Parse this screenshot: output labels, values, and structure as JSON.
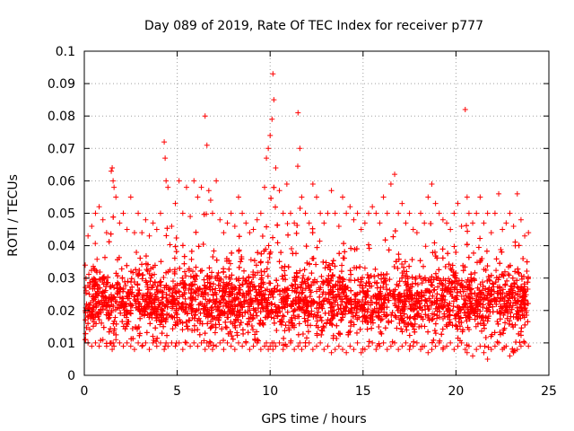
{
  "chart_data": {
    "type": "scatter",
    "title": "Day 089 of 2019, Rate Of TEC Index for receiver p777",
    "xlabel": "GPS time / hours",
    "ylabel": "ROTI / TECUs",
    "xlim": [
      0,
      25
    ],
    "ylim": [
      0,
      0.1
    ],
    "xticks": [
      0,
      5,
      10,
      15,
      20,
      25
    ],
    "xtick_labels": [
      "0",
      "5",
      "10",
      "15",
      "20",
      "25"
    ],
    "yticks": [
      0,
      0.01,
      0.02,
      0.03,
      0.04,
      0.05,
      0.06,
      0.07,
      0.08,
      0.09,
      0.1
    ],
    "ytick_labels": [
      "0",
      "0.01",
      "0.02",
      "0.03",
      "0.04",
      "0.05",
      "0.06",
      "0.07",
      "0.08",
      "0.09",
      "0.1"
    ],
    "grid": true,
    "marker": "+",
    "series": [
      {
        "name": "ROTI",
        "color": "#ff0000",
        "x": [
          0.05,
          0.2,
          0.4,
          0.6,
          0.8,
          1.0,
          1.2,
          1.45,
          1.5,
          1.55,
          1.6,
          1.7,
          1.9,
          2.1,
          2.3,
          2.5,
          2.7,
          2.9,
          3.1,
          3.3,
          3.5,
          3.7,
          3.9,
          4.1,
          4.3,
          4.35,
          4.4,
          4.5,
          4.7,
          4.9,
          5.1,
          5.3,
          5.5,
          5.7,
          5.9,
          6.1,
          6.3,
          6.5,
          6.6,
          6.7,
          6.8,
          6.9,
          7.1,
          7.3,
          7.5,
          7.7,
          7.9,
          8.1,
          8.3,
          8.5,
          8.7,
          8.9,
          9.1,
          9.3,
          9.5,
          9.7,
          9.8,
          9.9,
          10.0,
          10.1,
          10.15,
          10.2,
          10.3,
          10.5,
          10.7,
          10.9,
          11.1,
          11.3,
          11.5,
          11.6,
          11.7,
          11.9,
          12.1,
          12.3,
          12.5,
          12.7,
          12.9,
          13.1,
          13.3,
          13.5,
          13.7,
          13.9,
          14.1,
          14.3,
          14.5,
          14.7,
          14.9,
          15.1,
          15.3,
          15.5,
          15.7,
          15.9,
          16.1,
          16.3,
          16.5,
          16.7,
          16.9,
          17.1,
          17.3,
          17.5,
          17.7,
          17.9,
          18.1,
          18.3,
          18.5,
          18.7,
          18.9,
          19.1,
          19.3,
          19.5,
          19.7,
          19.9,
          20.1,
          20.3,
          20.5,
          20.6,
          20.7,
          20.9,
          21.1,
          21.3,
          21.5,
          21.7,
          21.9,
          22.1,
          22.3,
          22.5,
          22.7,
          22.9,
          23.1,
          23.3,
          23.5,
          23.7,
          23.9
        ],
        "y": [
          0.034,
          0.043,
          0.046,
          0.05,
          0.052,
          0.048,
          0.044,
          0.063,
          0.064,
          0.06,
          0.058,
          0.055,
          0.047,
          0.05,
          0.045,
          0.055,
          0.044,
          0.05,
          0.044,
          0.048,
          0.043,
          0.047,
          0.045,
          0.05,
          0.072,
          0.067,
          0.06,
          0.058,
          0.046,
          0.053,
          0.06,
          0.05,
          0.058,
          0.049,
          0.06,
          0.055,
          0.058,
          0.08,
          0.071,
          0.057,
          0.054,
          0.05,
          0.06,
          0.048,
          0.044,
          0.047,
          0.05,
          0.046,
          0.055,
          0.05,
          0.047,
          0.044,
          0.045,
          0.048,
          0.05,
          0.058,
          0.067,
          0.07,
          0.074,
          0.079,
          0.093,
          0.085,
          0.064,
          0.057,
          0.05,
          0.059,
          0.05,
          0.047,
          0.081,
          0.07,
          0.055,
          0.05,
          0.047,
          0.059,
          0.055,
          0.05,
          0.047,
          0.05,
          0.057,
          0.05,
          0.046,
          0.055,
          0.05,
          0.052,
          0.048,
          0.05,
          0.045,
          0.047,
          0.05,
          0.052,
          0.05,
          0.047,
          0.055,
          0.05,
          0.059,
          0.062,
          0.05,
          0.053,
          0.047,
          0.05,
          0.045,
          0.044,
          0.05,
          0.047,
          0.055,
          0.059,
          0.053,
          0.05,
          0.048,
          0.047,
          0.045,
          0.05,
          0.053,
          0.046,
          0.082,
          0.055,
          0.05,
          0.047,
          0.05,
          0.055,
          0.047,
          0.05,
          0.044,
          0.05,
          0.056,
          0.045,
          0.047,
          0.05,
          0.046,
          0.056,
          0.048,
          0.043,
          0.044
        ],
        "y_low": [
          0.011,
          0.01,
          0.009,
          0.01,
          0.009,
          0.011,
          0.009,
          0.01,
          0.008,
          0.01,
          0.009,
          0.011,
          0.01,
          0.009,
          0.01,
          0.009,
          0.008,
          0.01,
          0.009,
          0.01,
          0.008,
          0.01,
          0.009,
          0.01,
          0.008,
          0.009,
          0.01,
          0.009,
          0.01,
          0.009,
          0.01,
          0.008,
          0.01,
          0.009,
          0.01,
          0.009,
          0.01,
          0.008,
          0.01,
          0.009,
          0.01,
          0.008,
          0.009,
          0.01,
          0.008,
          0.01,
          0.009,
          0.008,
          0.01,
          0.009,
          0.01,
          0.008,
          0.009,
          0.01,
          0.008,
          0.009,
          0.01,
          0.008,
          0.009,
          0.01,
          0.008,
          0.01,
          0.009,
          0.01,
          0.008,
          0.009,
          0.01,
          0.008,
          0.009,
          0.01,
          0.008,
          0.009,
          0.01,
          0.008,
          0.009,
          0.01,
          0.008,
          0.009,
          0.007,
          0.008,
          0.009,
          0.008,
          0.007,
          0.009,
          0.008,
          0.01,
          0.007,
          0.008,
          0.009,
          0.01,
          0.008,
          0.009,
          0.01,
          0.008,
          0.009,
          0.01,
          0.008,
          0.009,
          0.01,
          0.008,
          0.009,
          0.01,
          0.008,
          0.009,
          0.007,
          0.008,
          0.009,
          0.01,
          0.008,
          0.009,
          0.01,
          0.008,
          0.009,
          0.01,
          0.008,
          0.007,
          0.009,
          0.006,
          0.008,
          0.009,
          0.007,
          0.005,
          0.008,
          0.009,
          0.01,
          0.008,
          0.009,
          0.006,
          0.007,
          0.008,
          0.009,
          0.01,
          0.009
        ]
      }
    ]
  }
}
